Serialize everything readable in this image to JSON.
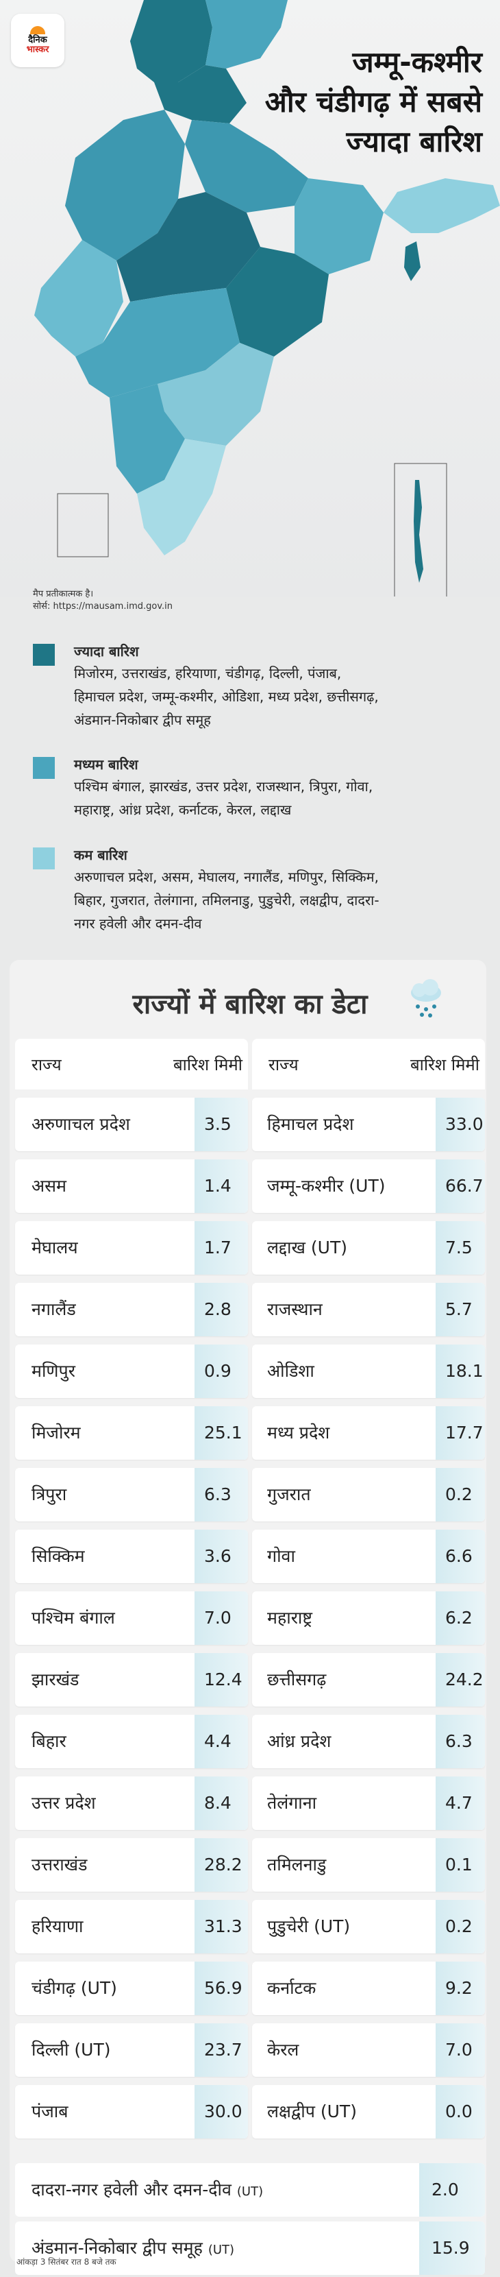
{
  "brand": {
    "line1": "दैनिक",
    "line2": "भास्कर"
  },
  "headline": {
    "line1": "जम्मू-कश्मीर",
    "line2": "और चंडीगढ़ में सबसे",
    "line3": "ज्यादा बारिश"
  },
  "map_note": {
    "line1": "मैप प्रतीकात्मक है।",
    "line2": "सोर्स: https://mausam.imd.gov.in"
  },
  "legend": [
    {
      "title": "ज्यादा बारिश",
      "color": "#1f7686",
      "line1": "मिजोरम, उत्तराखंड, हरियाणा, चंडीगढ़, दिल्ली, पंजाब,",
      "line2": "हिमाचल प्रदेश, जम्मू-कश्मीर, ओडिशा, मध्य प्रदेश, छत्तीसगढ़,",
      "line3": "अंडमान-निकोबार द्वीप समूह"
    },
    {
      "title": "मध्यम बारिश",
      "color": "#4aa5bd",
      "line1": "पश्चिम बंगाल, झारखंड, उत्तर प्रदेश, राजस्थान, त्रिपुरा, गोवा,",
      "line2": "महाराष्ट्र, आंध्र प्रदेश, कर्नाटक, केरल, लद्दाख",
      "line3": ""
    },
    {
      "title": "कम बारिश",
      "color": "#8fd0df",
      "line1": "अरुणाचल प्रदेश, असम, मेघालय, नगालैंड, मणिपुर, सिक्किम,",
      "line2": "बिहार, गुजरात, तेलंगाना, तमिलनाडु, पुडुचेरी, लक्षद्वीप, दादरा-",
      "line3": "नगर हवेली और दमन-दीव"
    }
  ],
  "table": {
    "title": "राज्यों में बारिश का डेटा",
    "col_state": "राज्य",
    "col_rain": "बारिश मिमी",
    "left": [
      {
        "state": "अरुणाचल प्रदेश",
        "rain": "3.5"
      },
      {
        "state": "असम",
        "rain": "1.4"
      },
      {
        "state": "मेघालय",
        "rain": "1.7"
      },
      {
        "state": "नगालैंड",
        "rain": "2.8"
      },
      {
        "state": "मणिपुर",
        "rain": "0.9"
      },
      {
        "state": "मिजोरम",
        "rain": "25.1"
      },
      {
        "state": "त्रिपुरा",
        "rain": "6.3"
      },
      {
        "state": "सिक्किम",
        "rain": "3.6"
      },
      {
        "state": "पश्चिम बंगाल",
        "rain": "7.0"
      },
      {
        "state": "झारखंड",
        "rain": "12.4"
      },
      {
        "state": "बिहार",
        "rain": "4.4"
      },
      {
        "state": "उत्तर प्रदेश",
        "rain": "8.4"
      },
      {
        "state": "उत्तराखंड",
        "rain": "28.2"
      },
      {
        "state": "हरियाणा",
        "rain": "31.3"
      },
      {
        "state": "चंडीगढ़ (UT)",
        "rain": "56.9"
      },
      {
        "state": "दिल्ली (UT)",
        "rain": "23.7"
      },
      {
        "state": "पंजाब",
        "rain": "30.0"
      }
    ],
    "right": [
      {
        "state": "हिमाचल प्रदेश",
        "rain": "33.0"
      },
      {
        "state": "जम्मू-कश्मीर (UT)",
        "rain": "66.7"
      },
      {
        "state": "लद्दाख (UT)",
        "rain": "7.5"
      },
      {
        "state": "राजस्थान",
        "rain": "5.7"
      },
      {
        "state": "ओडिशा",
        "rain": "18.1"
      },
      {
        "state": "मध्य प्रदेश",
        "rain": "17.7"
      },
      {
        "state": "गुजरात",
        "rain": "0.2"
      },
      {
        "state": "गोवा",
        "rain": "6.6"
      },
      {
        "state": "महाराष्ट्र",
        "rain": "6.2"
      },
      {
        "state": "छत्तीसगढ़",
        "rain": "24.2"
      },
      {
        "state": "आंध्र प्रदेश",
        "rain": "6.3"
      },
      {
        "state": "तेलंगाना",
        "rain": "4.7"
      },
      {
        "state": "तमिलनाडु",
        "rain": "0.1"
      },
      {
        "state": "पुडुचेरी (UT)",
        "rain": "0.2"
      },
      {
        "state": "कर्नाटक",
        "rain": "9.2"
      },
      {
        "state": "केरल",
        "rain": "7.0"
      },
      {
        "state": "लक्षद्वीप (UT)",
        "rain": "0.0"
      }
    ],
    "wide": [
      {
        "state": "दादरा-नगर हवेली और दमन-दीव",
        "suffix": "(UT)",
        "rain": "2.0"
      },
      {
        "state": "अंडमान-निकोबार द्वीप समूह",
        "suffix": "(UT)",
        "rain": "15.9"
      }
    ]
  },
  "footnote": "आंकड़ा 3 सितंबर रात 8 बजे तक",
  "colors": {
    "high": "#1f7686",
    "medium": "#4aa5bd",
    "low": "#8fd0df",
    "cell": "#d4ebf1"
  }
}
